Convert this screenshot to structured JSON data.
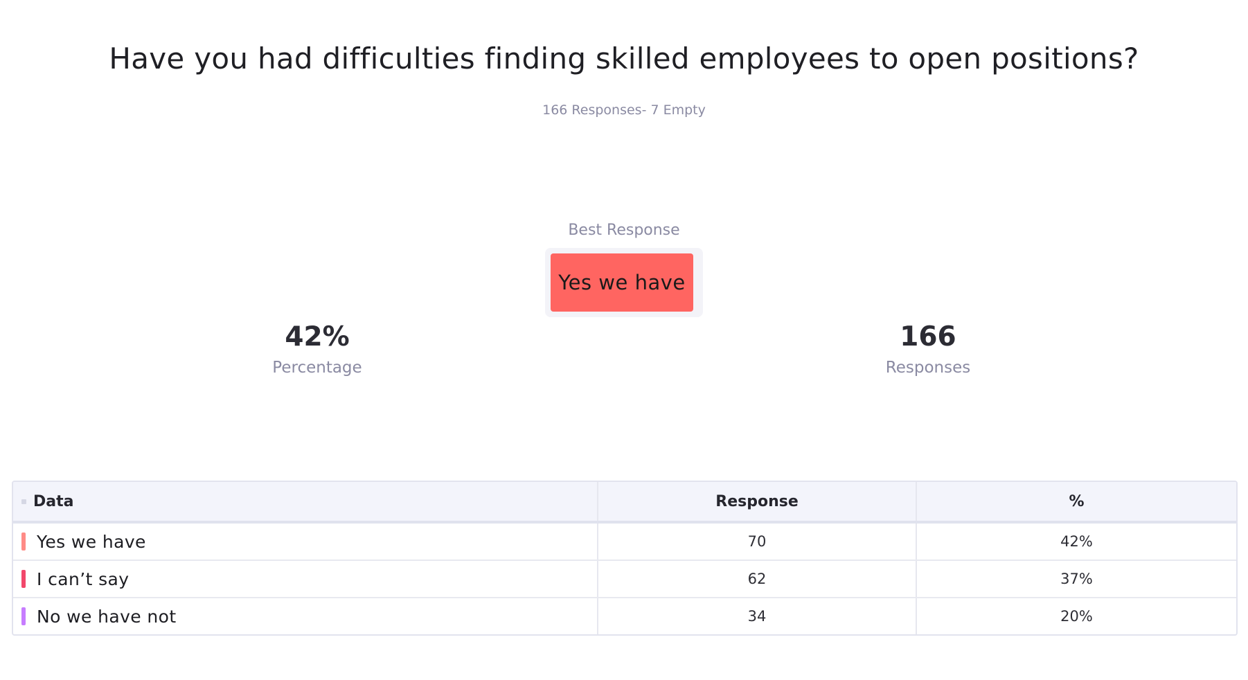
{
  "question": {
    "title": "Have you had difficulties finding skilled employees to open positions?",
    "meta": "166 Responses- 7 Empty"
  },
  "best_response": {
    "label": "Best Response",
    "value": "Yes we have",
    "color": "#ff6561"
  },
  "stats": {
    "percentage": {
      "value": "42%",
      "label": "Percentage"
    },
    "responses": {
      "value": "166",
      "label": "Responses"
    }
  },
  "table": {
    "headers": {
      "data": "Data",
      "response": "Response",
      "percent": "%"
    },
    "rows": [
      {
        "label": "Yes we have",
        "response": "70",
        "percent": "42%",
        "color": "#ff8b86"
      },
      {
        "label": "I can’t say",
        "response": "62",
        "percent": "37%",
        "color": "#f2476b"
      },
      {
        "label": "No we have not",
        "response": "34",
        "percent": "20%",
        "color": "#c77dff"
      }
    ]
  }
}
